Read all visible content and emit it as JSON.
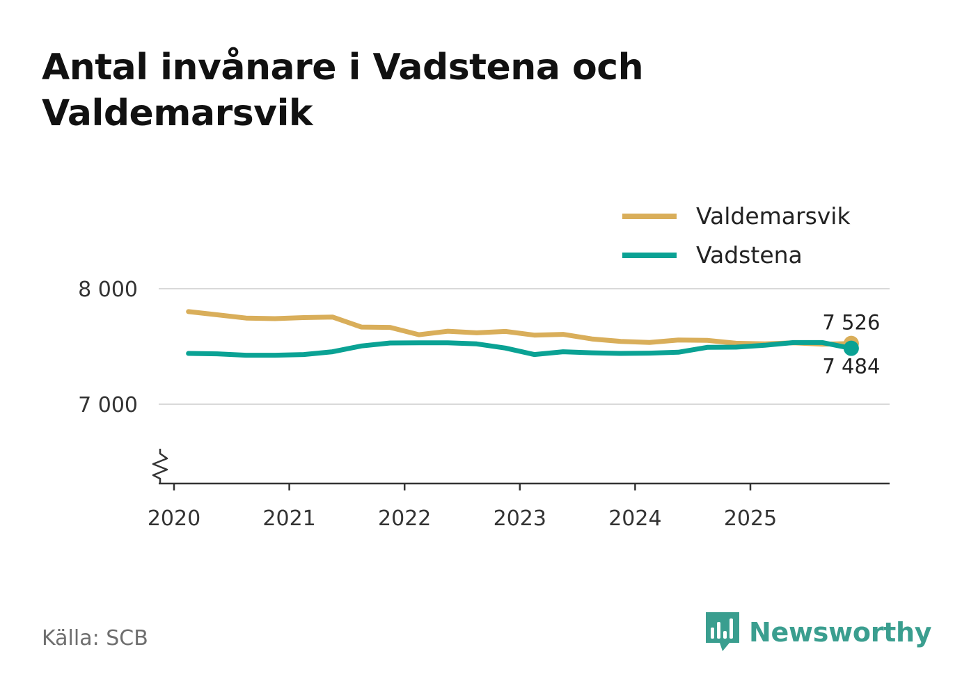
{
  "title": "Antal invånare i Vadstena och Valdemarsvik",
  "source": "Källa: SCB",
  "brand": {
    "name": "Newsworthy",
    "icon": "newsworthy-logo-icon",
    "color": "#3a9e8f"
  },
  "chart_data": {
    "type": "line",
    "title": "Antal invånare i Vadstena och Valdemarsvik",
    "xlabel": "",
    "ylabel": "",
    "ylim": [
      6320,
      8000
    ],
    "y_axis_break": true,
    "grid": true,
    "legend_position": "top-right",
    "y_ticks": [
      {
        "value": 7000,
        "label": "7 000"
      },
      {
        "value": 8000,
        "label": "8 000"
      }
    ],
    "x_ticks": [
      {
        "value": 2020,
        "label": "2020"
      },
      {
        "value": 2021,
        "label": "2021"
      },
      {
        "value": 2022,
        "label": "2022"
      },
      {
        "value": 2023,
        "label": "2023"
      },
      {
        "value": 2024,
        "label": "2024"
      },
      {
        "value": 2025,
        "label": "2025"
      }
    ],
    "x_range": [
      2020,
      2026
    ],
    "x": [
      2020.125,
      2020.375,
      2020.625,
      2020.875,
      2021.125,
      2021.375,
      2021.625,
      2021.875,
      2022.125,
      2022.375,
      2022.625,
      2022.875,
      2023.125,
      2023.375,
      2023.625,
      2023.875,
      2024.125,
      2024.375,
      2024.625,
      2024.875,
      2025.125,
      2025.375,
      2025.625,
      2025.875
    ],
    "series": [
      {
        "name": "Valdemarsvik",
        "color": "#d9ae5a",
        "values": [
          7802,
          7774,
          7746,
          7741,
          7750,
          7755,
          7668,
          7665,
          7602,
          7632,
          7618,
          7630,
          7598,
          7605,
          7565,
          7544,
          7535,
          7556,
          7553,
          7528,
          7522,
          7532,
          7520,
          7526
        ],
        "end_label": "7 526"
      },
      {
        "name": "Vadstena",
        "color": "#0aa294",
        "values": [
          7440,
          7436,
          7424,
          7424,
          7430,
          7454,
          7504,
          7530,
          7532,
          7532,
          7522,
          7486,
          7430,
          7454,
          7445,
          7440,
          7442,
          7450,
          7492,
          7494,
          7510,
          7534,
          7534,
          7484
        ],
        "end_label": "7 484"
      }
    ]
  }
}
